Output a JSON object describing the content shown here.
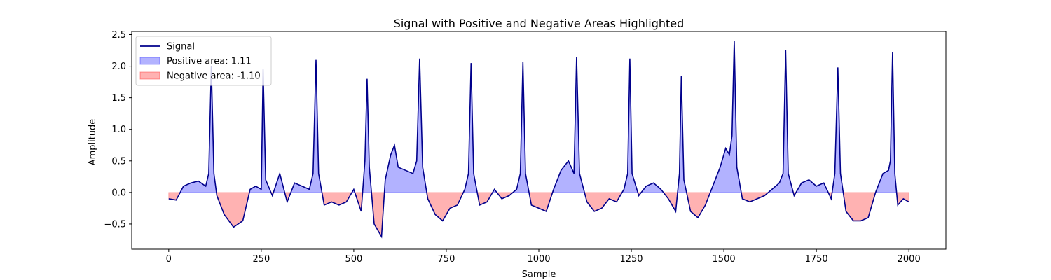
{
  "chart_data": {
    "type": "line",
    "title": "Signal with Positive and Negative Areas Highlighted",
    "xlabel": "Sample",
    "ylabel": "Amplitude",
    "xlim": [
      -100,
      2100
    ],
    "ylim": [
      -0.9,
      2.55
    ],
    "x_ticks": [
      0,
      250,
      500,
      750,
      1000,
      1250,
      1500,
      1750,
      2000
    ],
    "x_tick_labels": [
      "0",
      "250",
      "500",
      "750",
      "1000",
      "1250",
      "1500",
      "1750",
      "2000"
    ],
    "y_ticks": [
      -0.5,
      0.0,
      0.5,
      1.0,
      1.5,
      2.0,
      2.5
    ],
    "y_tick_labels": [
      "−0.5",
      "0.0",
      "0.5",
      "1.0",
      "1.5",
      "2.0",
      "2.5"
    ],
    "grid": false,
    "legend_position": "top-left",
    "series": [
      {
        "name": "Signal",
        "color": "#00008b",
        "points": [
          [
            0,
            -0.1
          ],
          [
            20,
            -0.12
          ],
          [
            40,
            0.1
          ],
          [
            60,
            0.15
          ],
          [
            80,
            0.18
          ],
          [
            100,
            0.1
          ],
          [
            108,
            0.3
          ],
          [
            115,
            2.0
          ],
          [
            122,
            0.3
          ],
          [
            130,
            -0.05
          ],
          [
            150,
            -0.35
          ],
          [
            175,
            -0.55
          ],
          [
            200,
            -0.45
          ],
          [
            220,
            0.05
          ],
          [
            235,
            0.1
          ],
          [
            250,
            0.05
          ],
          [
            255,
            1.95
          ],
          [
            262,
            0.2
          ],
          [
            280,
            -0.05
          ],
          [
            300,
            0.3
          ],
          [
            320,
            -0.15
          ],
          [
            340,
            0.15
          ],
          [
            360,
            0.1
          ],
          [
            380,
            0.05
          ],
          [
            390,
            0.3
          ],
          [
            398,
            2.1
          ],
          [
            405,
            0.3
          ],
          [
            420,
            -0.2
          ],
          [
            440,
            -0.15
          ],
          [
            460,
            -0.2
          ],
          [
            480,
            -0.15
          ],
          [
            500,
            0.05
          ],
          [
            520,
            -0.3
          ],
          [
            530,
            0.5
          ],
          [
            536,
            1.8
          ],
          [
            542,
            0.4
          ],
          [
            555,
            -0.5
          ],
          [
            575,
            -0.7
          ],
          [
            585,
            0.2
          ],
          [
            600,
            0.6
          ],
          [
            610,
            0.75
          ],
          [
            620,
            0.4
          ],
          [
            640,
            0.35
          ],
          [
            660,
            0.3
          ],
          [
            670,
            0.5
          ],
          [
            678,
            2.12
          ],
          [
            686,
            0.4
          ],
          [
            700,
            -0.1
          ],
          [
            720,
            -0.35
          ],
          [
            740,
            -0.45
          ],
          [
            760,
            -0.25
          ],
          [
            780,
            -0.2
          ],
          [
            800,
            0.05
          ],
          [
            810,
            0.3
          ],
          [
            817,
            2.05
          ],
          [
            824,
            0.3
          ],
          [
            840,
            -0.2
          ],
          [
            860,
            -0.15
          ],
          [
            880,
            0.05
          ],
          [
            900,
            -0.1
          ],
          [
            920,
            -0.05
          ],
          [
            940,
            0.05
          ],
          [
            950,
            0.3
          ],
          [
            957,
            2.07
          ],
          [
            964,
            0.3
          ],
          [
            980,
            -0.2
          ],
          [
            1000,
            -0.25
          ],
          [
            1020,
            -0.3
          ],
          [
            1040,
            0.05
          ],
          [
            1060,
            0.35
          ],
          [
            1080,
            0.5
          ],
          [
            1095,
            0.3
          ],
          [
            1102,
            2.15
          ],
          [
            1110,
            0.3
          ],
          [
            1130,
            -0.15
          ],
          [
            1150,
            -0.3
          ],
          [
            1170,
            -0.25
          ],
          [
            1190,
            -0.1
          ],
          [
            1210,
            -0.15
          ],
          [
            1230,
            0.05
          ],
          [
            1240,
            0.3
          ],
          [
            1246,
            2.12
          ],
          [
            1252,
            0.3
          ],
          [
            1270,
            -0.05
          ],
          [
            1290,
            0.1
          ],
          [
            1310,
            0.15
          ],
          [
            1330,
            0.05
          ],
          [
            1350,
            -0.1
          ],
          [
            1370,
            -0.3
          ],
          [
            1380,
            0.3
          ],
          [
            1385,
            1.85
          ],
          [
            1392,
            0.2
          ],
          [
            1410,
            -0.3
          ],
          [
            1430,
            -0.4
          ],
          [
            1450,
            -0.2
          ],
          [
            1470,
            0.1
          ],
          [
            1490,
            0.4
          ],
          [
            1505,
            0.7
          ],
          [
            1515,
            0.6
          ],
          [
            1522,
            0.9
          ],
          [
            1528,
            2.4
          ],
          [
            1535,
            0.4
          ],
          [
            1550,
            -0.1
          ],
          [
            1570,
            -0.15
          ],
          [
            1590,
            -0.1
          ],
          [
            1610,
            -0.05
          ],
          [
            1630,
            0.05
          ],
          [
            1650,
            0.15
          ],
          [
            1660,
            0.3
          ],
          [
            1667,
            2.26
          ],
          [
            1674,
            0.3
          ],
          [
            1690,
            -0.05
          ],
          [
            1710,
            0.15
          ],
          [
            1730,
            0.2
          ],
          [
            1750,
            0.1
          ],
          [
            1770,
            0.15
          ],
          [
            1790,
            -0.1
          ],
          [
            1800,
            0.3
          ],
          [
            1808,
            1.98
          ],
          [
            1815,
            0.3
          ],
          [
            1830,
            -0.3
          ],
          [
            1850,
            -0.45
          ],
          [
            1870,
            -0.45
          ],
          [
            1890,
            -0.4
          ],
          [
            1910,
            0.0
          ],
          [
            1930,
            0.3
          ],
          [
            1945,
            0.35
          ],
          [
            1950,
            0.5
          ],
          [
            1956,
            2.22
          ],
          [
            1962,
            0.3
          ],
          [
            1970,
            -0.2
          ],
          [
            1985,
            -0.1
          ],
          [
            2000,
            -0.15
          ]
        ]
      }
    ],
    "legend": [
      {
        "label": "Signal",
        "kind": "line",
        "color": "#00008b"
      },
      {
        "label": "Positive area: 1.11",
        "kind": "patch",
        "color": "#0000ff"
      },
      {
        "label": "Negative area: -1.10",
        "kind": "patch",
        "color": "#ff0000"
      }
    ]
  }
}
